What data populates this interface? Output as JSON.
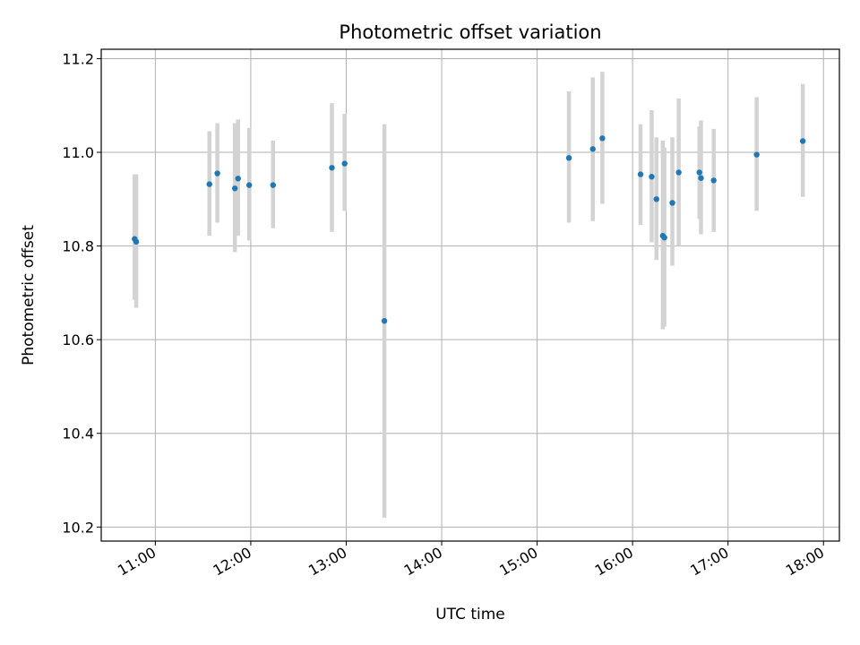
{
  "chart_data": {
    "type": "scatter",
    "title": "Photometric offset variation",
    "xlabel": "UTC time",
    "ylabel": "Photometric offset",
    "xlim": [
      "10:26",
      "18:10"
    ],
    "ylim": [
      10.17,
      11.22
    ],
    "x_ticks": [
      "11:00",
      "12:00",
      "13:00",
      "14:00",
      "15:00",
      "16:00",
      "17:00",
      "18:00"
    ],
    "y_ticks": [
      10.2,
      10.4,
      10.6,
      10.8,
      11.0,
      11.2
    ],
    "grid": true,
    "marker_color": "#1f77b4",
    "errorbar_color": "#d3d3d3",
    "points": [
      {
        "x": "10:47",
        "y": 10.815,
        "ylow": 10.685,
        "yhigh": 10.953
      },
      {
        "x": "10:48",
        "y": 10.809,
        "ylow": 10.668,
        "yhigh": 10.953
      },
      {
        "x": "11:34",
        "y": 10.932,
        "ylow": 10.822,
        "yhigh": 11.045
      },
      {
        "x": "11:39",
        "y": 10.955,
        "ylow": 10.85,
        "yhigh": 11.062
      },
      {
        "x": "11:50",
        "y": 10.923,
        "ylow": 10.787,
        "yhigh": 11.062
      },
      {
        "x": "11:52",
        "y": 10.944,
        "ylow": 10.822,
        "yhigh": 11.07
      },
      {
        "x": "11:59",
        "y": 10.93,
        "ylow": 10.812,
        "yhigh": 11.052
      },
      {
        "x": "12:14",
        "y": 10.93,
        "ylow": 10.838,
        "yhigh": 11.025
      },
      {
        "x": "12:51",
        "y": 10.967,
        "ylow": 10.83,
        "yhigh": 11.105
      },
      {
        "x": "12:59",
        "y": 10.976,
        "ylow": 10.875,
        "yhigh": 11.082
      },
      {
        "x": "13:24",
        "y": 10.64,
        "ylow": 10.22,
        "yhigh": 11.06
      },
      {
        "x": "15:20",
        "y": 10.988,
        "ylow": 10.85,
        "yhigh": 11.13
      },
      {
        "x": "15:35",
        "y": 11.007,
        "ylow": 10.853,
        "yhigh": 11.16
      },
      {
        "x": "15:41",
        "y": 11.03,
        "ylow": 10.89,
        "yhigh": 11.172
      },
      {
        "x": "16:05",
        "y": 10.953,
        "ylow": 10.845,
        "yhigh": 11.06
      },
      {
        "x": "16:12",
        "y": 10.948,
        "ylow": 10.808,
        "yhigh": 11.09
      },
      {
        "x": "16:15",
        "y": 10.9,
        "ylow": 10.77,
        "yhigh": 11.032
      },
      {
        "x": "16:19",
        "y": 10.822,
        "ylow": 10.622,
        "yhigh": 11.025
      },
      {
        "x": "16:20",
        "y": 10.818,
        "ylow": 10.628,
        "yhigh": 11.01
      },
      {
        "x": "16:25",
        "y": 10.892,
        "ylow": 10.758,
        "yhigh": 11.032
      },
      {
        "x": "16:29",
        "y": 10.957,
        "ylow": 10.8,
        "yhigh": 11.115
      },
      {
        "x": "16:42",
        "y": 10.957,
        "ylow": 10.858,
        "yhigh": 11.055
      },
      {
        "x": "16:43",
        "y": 10.945,
        "ylow": 10.825,
        "yhigh": 11.068
      },
      {
        "x": "16:51",
        "y": 10.94,
        "ylow": 10.83,
        "yhigh": 11.05
      },
      {
        "x": "17:18",
        "y": 10.995,
        "ylow": 10.875,
        "yhigh": 11.118
      },
      {
        "x": "17:47",
        "y": 11.024,
        "ylow": 10.905,
        "yhigh": 11.146
      }
    ]
  }
}
